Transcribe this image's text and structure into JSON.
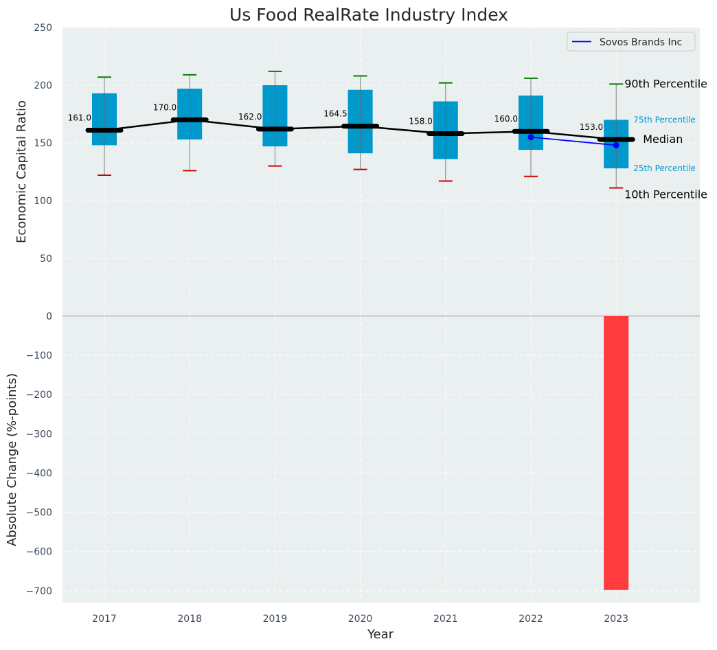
{
  "chart_data": [
    {
      "type": "box",
      "title": "Us Food RealRate Industry Index",
      "ylabel": "Economic Capital Ratio",
      "ylim": [
        0,
        250
      ],
      "yticks": [
        0,
        50,
        100,
        150,
        200,
        250
      ],
      "grid": true,
      "categories": [
        "2017",
        "2018",
        "2019",
        "2020",
        "2021",
        "2022",
        "2023"
      ],
      "boxes": [
        {
          "p10": 122,
          "p25": 148,
          "median": 161.0,
          "p75": 193,
          "p90": 207
        },
        {
          "p10": 126,
          "p25": 153,
          "median": 170.0,
          "p75": 197,
          "p90": 209
        },
        {
          "p10": 130,
          "p25": 147,
          "median": 162.0,
          "p75": 200,
          "p90": 212
        },
        {
          "p10": 127,
          "p25": 141,
          "median": 164.5,
          "p75": 196,
          "p90": 208
        },
        {
          "p10": 117,
          "p25": 136,
          "median": 158.0,
          "p75": 186,
          "p90": 202
        },
        {
          "p10": 121,
          "p25": 144,
          "median": 160.0,
          "p75": 191,
          "p90": 206
        },
        {
          "p10": 111,
          "p25": 128,
          "median": 153.0,
          "p75": 170,
          "p90": 201
        }
      ],
      "median_labels": [
        "161.0",
        "170.0",
        "162.0",
        "164.5",
        "158.0",
        "160.0",
        "153.0"
      ],
      "series": [
        {
          "name": "Sovos Brands Inc",
          "x": [
            "2022",
            "2023"
          ],
          "values": [
            155,
            148
          ],
          "color": "#0000ff"
        }
      ],
      "annotations": {
        "p90": "90th Percentile",
        "p75": "75th Percentile",
        "median": "Median",
        "p25": "25th Percentile",
        "p10": "10th Percentile"
      },
      "legend": {
        "position": "top-right"
      },
      "colors": {
        "box": "#0099cc",
        "median_line": "#000000",
        "p90_cap": "#008000",
        "p10_cap": "#cc0000",
        "plot_bg": "#eaeff0"
      }
    },
    {
      "type": "bar",
      "ylabel": "Absolute Change (%-points)",
      "xlabel": "Year",
      "ylim": [
        -730,
        0
      ],
      "yticks": [
        0,
        -100,
        -200,
        -300,
        -400,
        -500,
        -600,
        -700
      ],
      "ytick_labels": [
        "0",
        "−100",
        "−200",
        "−300",
        "−400",
        "−500",
        "−600",
        "−700"
      ],
      "grid": true,
      "categories": [
        "2017",
        "2018",
        "2019",
        "2020",
        "2021",
        "2022",
        "2023"
      ],
      "values": [
        null,
        null,
        null,
        null,
        null,
        null,
        -698
      ],
      "color": "#ff3b3f"
    }
  ]
}
